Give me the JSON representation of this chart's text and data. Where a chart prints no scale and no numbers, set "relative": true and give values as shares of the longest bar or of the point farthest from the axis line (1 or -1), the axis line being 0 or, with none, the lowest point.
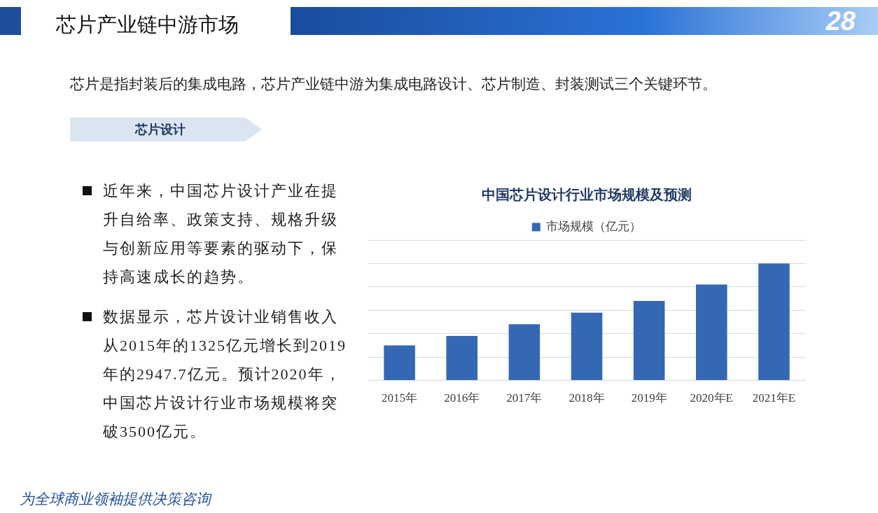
{
  "chart_data": {
    "type": "bar",
    "title": "中国芯片设计行业市场规模及预测",
    "categories": [
      "2015年",
      "2016年",
      "2017年",
      "2018年",
      "2019年",
      "2020年E",
      "2021年E"
    ],
    "series": [
      {
        "name": "市场规模（亿元）",
        "color": "#3468b4",
        "values": [
          0.3,
          0.38,
          0.48,
          0.58,
          0.68,
          0.82,
          1
        ]
      }
    ],
    "relative": true,
    "legend": "top",
    "grid": "y",
    "annotations": [
      "芯片产业链中游市场",
      "28",
      "芯片是指封装后的集成电路，芯片产业链中游为集成电路设计、芯片制造、封装测试三个关键环节。",
      "芯片设计",
      "近年来，中国芯片设计产业在提升自给率、政策支持、规格升级与创新应用等要素的驱动下，保持高速成长的趋势。",
      "数据显示，芯片设计业销售收入从2015年的1325亿元增长到2019年的2947.7亿元。预计2020年，中国芯片设计行业市场规模将突破3500亿元。",
      "为全球商业领袖提供决策咨询"
    ]
  }
}
